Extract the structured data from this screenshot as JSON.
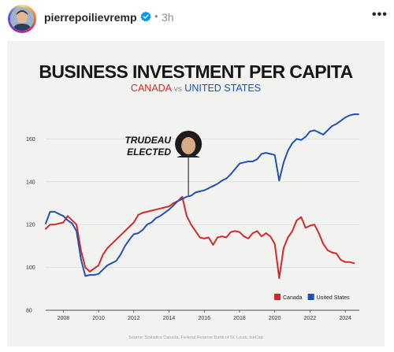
{
  "post": {
    "username": "pierrepoilievremp",
    "separator": "•",
    "time": "3h",
    "more_icon": "more-horizontal-icon",
    "verified_icon": "verified-badge-icon",
    "verified_color": "#0095f6"
  },
  "chart_data": {
    "type": "line",
    "title": "BUSINESS INVESTMENT PER CAPITA",
    "subtitle": {
      "a": "CANADA",
      "vs": "vs",
      "b": "UNITED STATES"
    },
    "annotation": {
      "line1": "TRUDEAU",
      "line2": "ELECTED",
      "x": 2015.1
    },
    "source": "Source: Statistics Canada, Federal Reserve Bank of St. Louis, IceCap",
    "xticks": [
      "2008",
      "2010",
      "2012",
      "2014",
      "2016",
      "2018",
      "2020",
      "2022",
      "2024"
    ],
    "xtick_values": [
      2008,
      2010,
      2012,
      2014,
      2016,
      2018,
      2020,
      2022,
      2024
    ],
    "yticks": [
      "80",
      "100",
      "120",
      "140",
      "160"
    ],
    "ytick_values": [
      80,
      100,
      120,
      140,
      160
    ],
    "xlim": [
      2007.0,
      2024.8
    ],
    "ylim": [
      80,
      180
    ],
    "legend_position": "bottom-right",
    "grid": true,
    "series": [
      {
        "name": "Canada",
        "color": "#d3292b",
        "x": [
          2007.0,
          2007.25,
          2007.5,
          2007.75,
          2008.0,
          2008.25,
          2008.5,
          2008.75,
          2009.0,
          2009.25,
          2009.5,
          2009.75,
          2010.0,
          2010.25,
          2010.5,
          2010.75,
          2011.0,
          2011.25,
          2011.5,
          2011.75,
          2012.0,
          2012.25,
          2012.5,
          2012.75,
          2013.0,
          2013.25,
          2013.5,
          2013.75,
          2014.0,
          2014.25,
          2014.5,
          2014.75,
          2015.0,
          2015.25,
          2015.5,
          2015.75,
          2016.0,
          2016.25,
          2016.5,
          2016.75,
          2017.0,
          2017.25,
          2017.5,
          2017.75,
          2018.0,
          2018.25,
          2018.5,
          2018.75,
          2019.0,
          2019.25,
          2019.5,
          2019.75,
          2020.0,
          2020.25,
          2020.5,
          2020.75,
          2021.0,
          2021.25,
          2021.5,
          2021.75,
          2022.0,
          2022.25,
          2022.5,
          2022.75,
          2023.0,
          2023.25,
          2023.5,
          2023.75,
          2024.0,
          2024.25,
          2024.5
        ],
        "values": [
          118,
          120,
          120,
          120.5,
          121,
          124,
          122,
          120,
          108,
          100,
          98,
          99.5,
          101,
          106,
          109,
          111,
          113,
          115,
          117,
          119,
          121,
          124.5,
          125.5,
          126,
          126.5,
          127,
          127.5,
          128,
          128.5,
          130,
          131,
          133,
          124,
          120,
          117,
          114,
          113.5,
          114,
          110.5,
          114,
          114.5,
          114,
          116.5,
          117,
          116.5,
          114.5,
          113.5,
          116,
          117,
          114.5,
          116,
          114.5,
          111,
          95,
          109,
          114,
          117,
          122,
          123.5,
          118.5,
          119.5,
          120,
          116,
          111,
          108,
          107,
          106.5,
          103.5,
          102.5,
          102.5,
          102
        ]
      },
      {
        "name": "United States",
        "color": "#1f52b5",
        "x": [
          2007.0,
          2007.25,
          2007.5,
          2007.75,
          2008.0,
          2008.25,
          2008.5,
          2008.75,
          2009.0,
          2009.25,
          2009.5,
          2009.75,
          2010.0,
          2010.25,
          2010.5,
          2010.75,
          2011.0,
          2011.25,
          2011.5,
          2011.75,
          2012.0,
          2012.25,
          2012.5,
          2012.75,
          2013.0,
          2013.25,
          2013.5,
          2013.75,
          2014.0,
          2014.25,
          2014.5,
          2014.75,
          2015.0,
          2015.25,
          2015.5,
          2015.75,
          2016.0,
          2016.25,
          2016.5,
          2016.75,
          2017.0,
          2017.25,
          2017.5,
          2017.75,
          2018.0,
          2018.25,
          2018.5,
          2018.75,
          2019.0,
          2019.25,
          2019.5,
          2019.75,
          2020.0,
          2020.25,
          2020.5,
          2020.75,
          2021.0,
          2021.25,
          2021.5,
          2021.75,
          2022.0,
          2022.25,
          2022.5,
          2022.75,
          2023.0,
          2023.25,
          2023.5,
          2023.75,
          2024.0,
          2024.25,
          2024.5,
          2024.75
        ],
        "values": [
          120.5,
          126,
          126,
          125,
          124,
          122,
          120.5,
          117,
          104,
          96,
          96.5,
          96.5,
          97,
          99,
          101,
          102,
          103,
          106,
          110,
          113,
          115.5,
          116,
          117.5,
          120,
          121,
          123,
          124,
          125.5,
          127,
          129,
          131,
          132,
          133,
          133.5,
          135,
          135.5,
          136,
          137,
          138,
          139,
          140.5,
          141.5,
          143.5,
          146,
          148.5,
          149,
          149.5,
          149.5,
          150.5,
          153,
          153.5,
          153,
          152.5,
          140.5,
          149,
          154.5,
          158,
          160,
          159.5,
          161,
          163.5,
          164,
          163,
          162,
          164,
          166,
          167,
          168.5,
          170,
          171,
          171.5,
          171.5
        ]
      }
    ]
  }
}
